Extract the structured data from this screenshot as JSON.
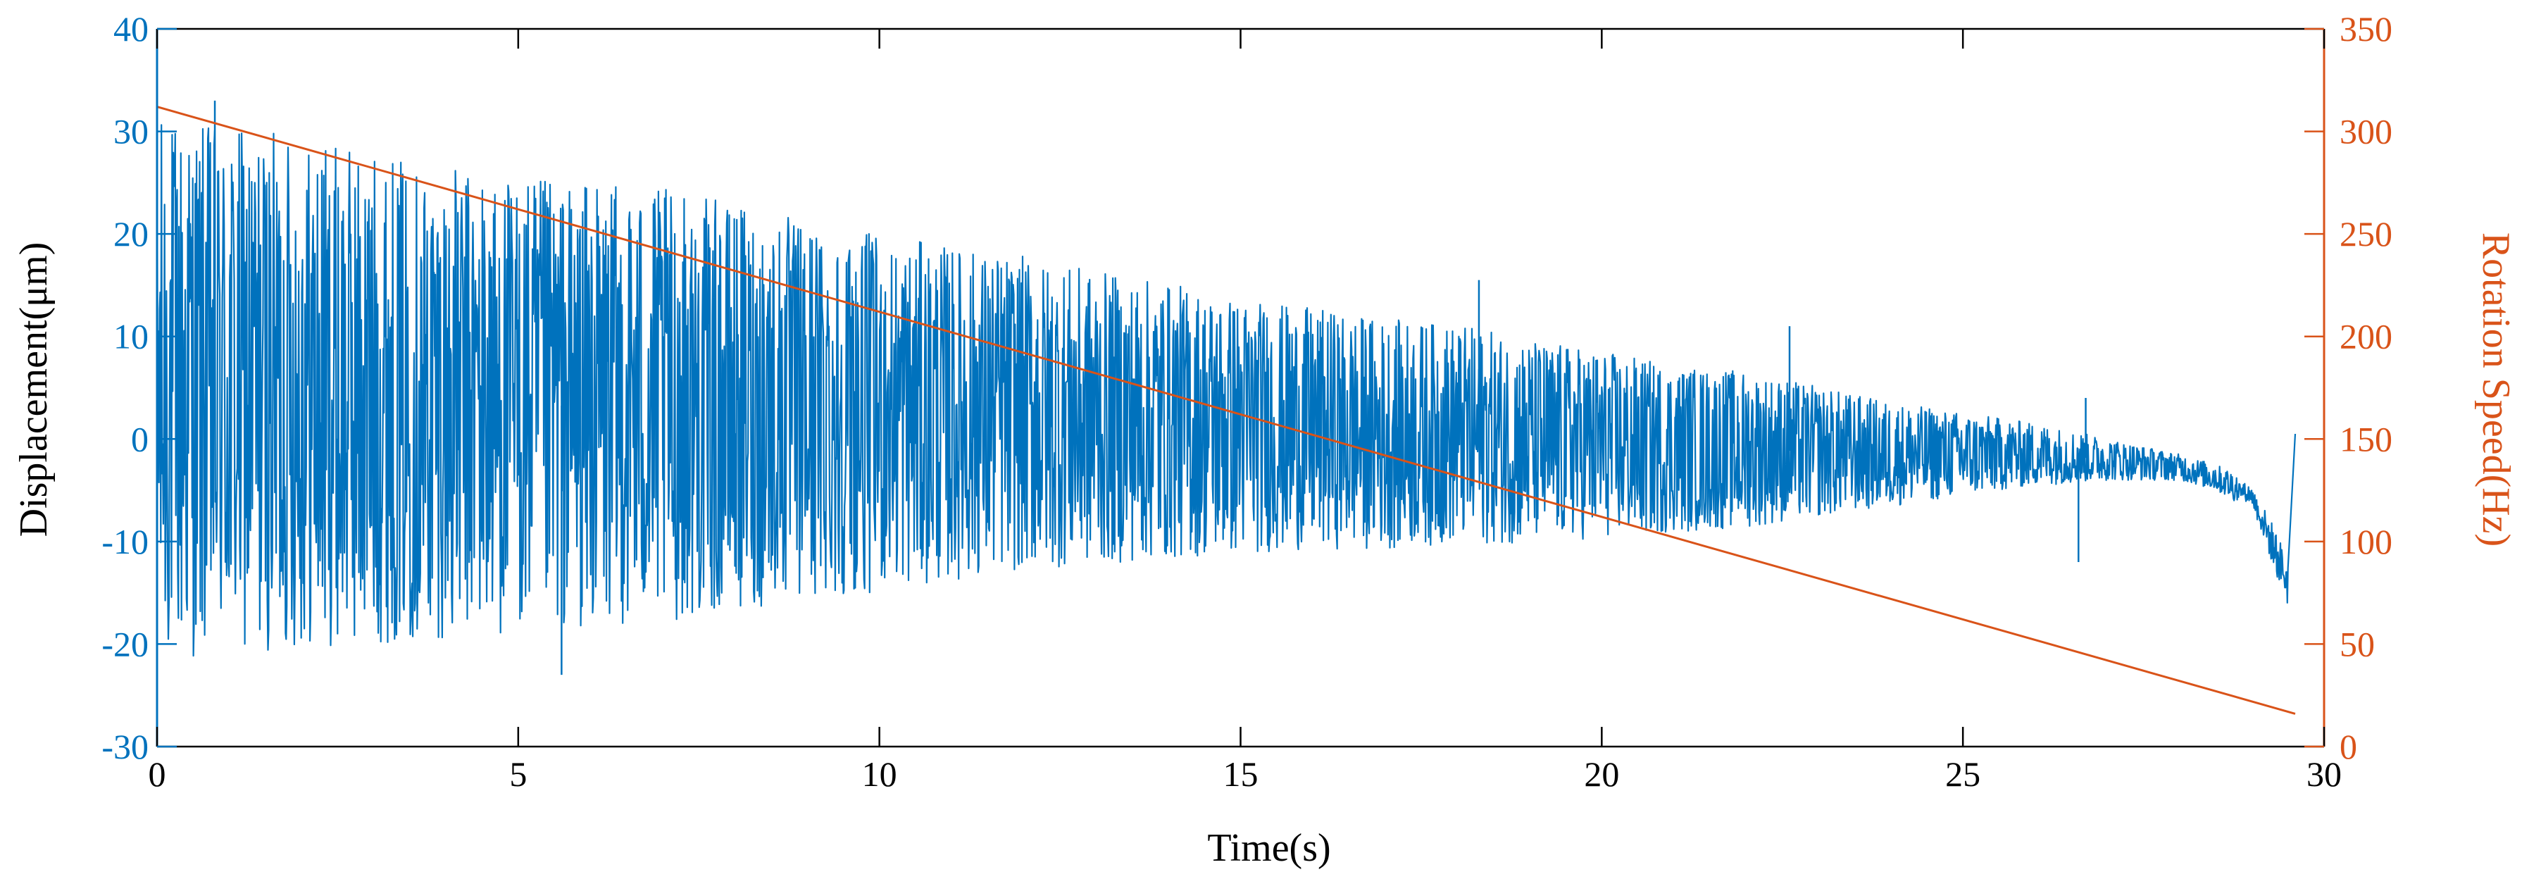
{
  "chart_data": {
    "type": "line",
    "title": "",
    "xlabel": "Time(s)",
    "ylabel_left": "Displacement(μm)",
    "ylabel_right": "Rotation Speed(Hz)",
    "xlim": [
      0,
      30
    ],
    "ylim_left": [
      -30,
      40
    ],
    "ylim_right": [
      0,
      350
    ],
    "x_ticks": [
      0,
      5,
      10,
      15,
      20,
      25,
      30
    ],
    "y_left_ticks": [
      -30,
      -20,
      -10,
      0,
      10,
      20,
      30,
      40
    ],
    "y_right_ticks": [
      0,
      50,
      100,
      150,
      200,
      250,
      300,
      350
    ],
    "grid": false,
    "colors": {
      "left": "#0072BD",
      "right": "#D95319",
      "axis": "#000000"
    },
    "series": [
      {
        "axis": "left",
        "color": "#0072BD",
        "envelope_x": [
          0,
          1,
          2,
          3,
          4,
          5,
          6,
          7,
          8,
          9,
          10,
          11,
          12,
          13,
          14,
          15,
          16,
          17,
          18,
          19,
          20,
          21,
          22,
          23,
          24,
          25,
          26,
          27,
          28,
          28.5,
          29,
          29.3,
          29.5
        ],
        "envelope_upper": [
          31,
          30,
          29,
          27.5,
          26,
          25,
          24.5,
          24,
          22.5,
          21,
          19.5,
          18.5,
          17.5,
          16,
          15,
          13.5,
          12.5,
          11.5,
          11,
          9.5,
          8.5,
          7,
          6.5,
          5,
          3.5,
          2.5,
          1.5,
          0,
          -1.5,
          -2.5,
          -4,
          -7,
          -10
        ],
        "envelope_lower": [
          -21,
          -20.5,
          -20,
          -19.5,
          -19,
          -18.5,
          -18,
          -17.5,
          -16.5,
          -15.5,
          -14.5,
          -13.5,
          -12.5,
          -12,
          -11.5,
          -11,
          -10.5,
          -10.5,
          -10,
          -10,
          -9.5,
          -9,
          -8.5,
          -7.5,
          -6.5,
          -5.5,
          -4.5,
          -4,
          -4,
          -5,
          -7,
          -14,
          -18
        ],
        "peaks": [
          {
            "x": 0.8,
            "y": 33
          },
          {
            "x": 5.6,
            "y": -23
          },
          {
            "x": 18.3,
            "y": 15.5
          },
          {
            "x": 22.6,
            "y": 11
          },
          {
            "x": 26.7,
            "y": 4
          },
          {
            "x": 26.6,
            "y": -12
          },
          {
            "x": 29.6,
            "y": 0.5
          }
        ]
      },
      {
        "axis": "right",
        "color": "#D95319",
        "x": [
          0,
          29.6
        ],
        "values": [
          312,
          16
        ]
      }
    ]
  }
}
